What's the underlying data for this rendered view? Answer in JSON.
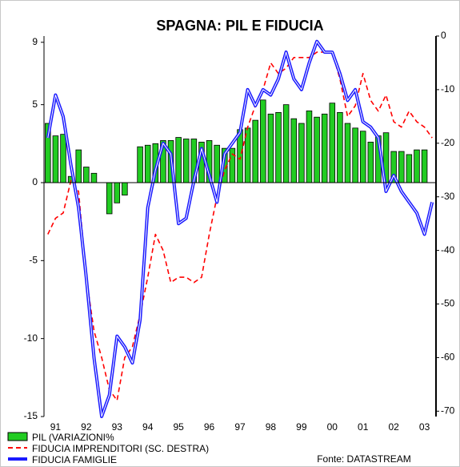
{
  "chart_data": {
    "type": "bar-line",
    "title": "SPAGNA: PIL E FIDUCIA",
    "source": "Fonte: DATASTREAM",
    "categories": [
      null,
      "91",
      null,
      null,
      null,
      "92",
      null,
      null,
      null,
      "93",
      null,
      null,
      null,
      "94",
      null,
      null,
      null,
      "95",
      null,
      null,
      null,
      "96",
      null,
      null,
      null,
      "97",
      null,
      null,
      null,
      "98",
      null,
      null,
      null,
      "99",
      null,
      null,
      null,
      "00",
      null,
      null,
      null,
      "01",
      null,
      null,
      null,
      "02",
      null,
      null,
      null,
      "03",
      null
    ],
    "ylim": [
      -15,
      9.4
    ],
    "yticks": [
      -15,
      -10,
      -5,
      0,
      5,
      9
    ],
    "y2lim": [
      -71,
      0
    ],
    "y2ticks": [
      -70,
      -60,
      -50,
      -40,
      -30,
      -20,
      -10,
      0
    ],
    "series": [
      {
        "name": "PIL (VARIAZIONI%",
        "type": "bar",
        "color": "#22cc22",
        "values": [
          3.8,
          3.0,
          3.1,
          0.4,
          2.1,
          1.0,
          0.6,
          0,
          -2.0,
          -1.3,
          -0.8,
          0,
          2.3,
          2.4,
          2.5,
          2.7,
          2.7,
          2.9,
          2.8,
          2.8,
          2.6,
          2.7,
          2.4,
          2.2,
          2.2,
          3.4,
          3.5,
          4.0,
          5.3,
          4.4,
          4.5,
          5.0,
          4.1,
          3.8,
          4.6,
          4.2,
          4.4,
          5.1,
          4.5,
          3.8,
          3.5,
          3.3,
          2.6,
          3.0,
          3.2,
          2.0,
          2.0,
          1.8,
          2.1,
          2.1,
          null
        ]
      },
      {
        "name": "FIDUCIA IMPRENDITORI (SC. DESTRA)",
        "type": "dashed-line",
        "axis": "y2",
        "color": "#ff0000",
        "values": [
          -37,
          -34,
          -33,
          -27,
          -29,
          -45,
          -55,
          -60,
          -66,
          -68,
          -60,
          -58,
          -52,
          -45,
          -37,
          -40,
          -46,
          -45,
          -45,
          -46,
          -45,
          -37,
          -30,
          -25,
          -22,
          -23,
          -17,
          -13,
          -10,
          -5,
          -7,
          -6,
          -4,
          -4,
          -4,
          -3,
          -3,
          -3,
          -8,
          -15,
          -13,
          -7,
          -12,
          -14,
          -11,
          -16,
          -17,
          -14,
          -16,
          -17,
          -19
        ]
      },
      {
        "name": "FIDUCIA FAMIGLIE",
        "type": "line",
        "axis": "y2",
        "color": "#1a1aff",
        "values": [
          -19,
          -11,
          -15,
          -24,
          -32,
          -45,
          -60,
          -71,
          -67,
          -56,
          -58,
          -61,
          -53,
          -32,
          -25,
          -20,
          -22,
          -35,
          -34,
          -27,
          -21,
          -26,
          -31,
          -22,
          -20,
          -18,
          -10,
          -13,
          -10,
          -11,
          -8,
          -3,
          -8,
          -10,
          -5,
          -1,
          -3,
          -3,
          -7,
          -12,
          -10,
          -16,
          -17,
          -19,
          -29,
          -26,
          -29,
          -31,
          -33,
          -37,
          -31
        ]
      }
    ]
  }
}
